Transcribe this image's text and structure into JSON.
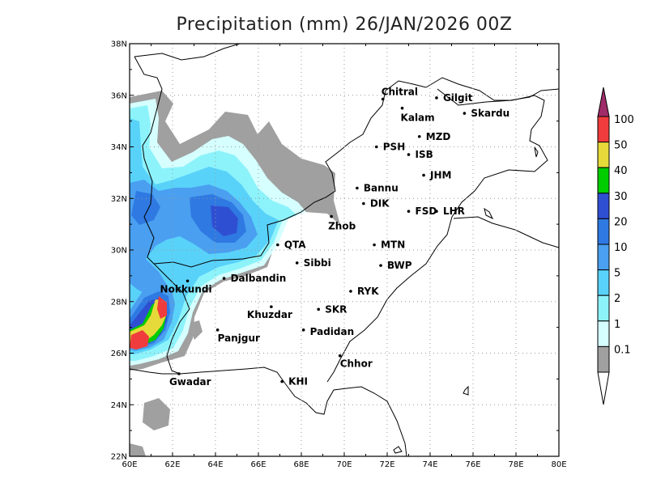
{
  "title": "Precipitation (mm) 26/JAN/2026 00Z",
  "map": {
    "lon_ticks": [
      "60E",
      "62E",
      "64E",
      "66E",
      "68E",
      "70E",
      "72E",
      "74E",
      "76E",
      "78E",
      "80E"
    ],
    "lat_ticks": [
      "38N",
      "36N",
      "34N",
      "32N",
      "30N",
      "28N",
      "26N",
      "24N",
      "22N"
    ],
    "extent": {
      "lon": [
        60,
        80
      ],
      "lat": [
        22,
        38
      ]
    },
    "grid": "dotted",
    "cities": [
      {
        "name": "Chitral",
        "lon": 71.8,
        "lat": 35.85
      },
      {
        "name": "Kalam",
        "lon": 72.7,
        "lat": 35.5
      },
      {
        "name": "Gilgit",
        "lon": 74.3,
        "lat": 35.9
      },
      {
        "name": "Skardu",
        "lon": 75.6,
        "lat": 35.3
      },
      {
        "name": "MZD",
        "lon": 73.5,
        "lat": 34.4
      },
      {
        "name": "PSH",
        "lon": 71.5,
        "lat": 34.0
      },
      {
        "name": "ISB",
        "lon": 73.0,
        "lat": 33.7
      },
      {
        "name": "JHM",
        "lon": 73.7,
        "lat": 32.9
      },
      {
        "name": "Bannu",
        "lon": 70.6,
        "lat": 32.4
      },
      {
        "name": "DIK",
        "lon": 70.9,
        "lat": 31.8
      },
      {
        "name": "FSD",
        "lon": 73.0,
        "lat": 31.5
      },
      {
        "name": "LHR",
        "lon": 74.3,
        "lat": 31.5
      },
      {
        "name": "Zhob",
        "lon": 69.4,
        "lat": 31.3
      },
      {
        "name": "QTA",
        "lon": 66.9,
        "lat": 30.2
      },
      {
        "name": "MTN",
        "lon": 71.4,
        "lat": 30.2
      },
      {
        "name": "Sibbi",
        "lon": 67.8,
        "lat": 29.5
      },
      {
        "name": "BWP",
        "lon": 71.7,
        "lat": 29.4
      },
      {
        "name": "Dalbandin",
        "lon": 64.4,
        "lat": 28.9
      },
      {
        "name": "Nokkundi",
        "lon": 62.7,
        "lat": 28.8
      },
      {
        "name": "RYK",
        "lon": 70.3,
        "lat": 28.4
      },
      {
        "name": "SKR",
        "lon": 68.8,
        "lat": 27.7
      },
      {
        "name": "Khuzdar",
        "lon": 66.6,
        "lat": 27.8
      },
      {
        "name": "Padidan",
        "lon": 68.1,
        "lat": 26.9
      },
      {
        "name": "Panjgur",
        "lon": 64.1,
        "lat": 26.9
      },
      {
        "name": "Chhor",
        "lon": 69.8,
        "lat": 25.9
      },
      {
        "name": "KHI",
        "lon": 67.1,
        "lat": 24.9
      },
      {
        "name": "Gwadar",
        "lon": 62.3,
        "lat": 25.2
      }
    ]
  },
  "colorbar": {
    "labels": [
      "100",
      "50",
      "40",
      "30",
      "20",
      "10",
      "5",
      "2",
      "1",
      "0.1"
    ],
    "colors": {
      "gray": "#a0a0a0",
      "c1": "#d6ffff",
      "c2": "#8df3fb",
      "c5": "#59d2fa",
      "c10": "#4a9ff0",
      "c20": "#2f79e2",
      "c30": "#2f4fd2",
      "c40": "#00cc00",
      "c50": "#e6d93a",
      "c100": "#f03c3c",
      "top": "#a02b69"
    }
  }
}
